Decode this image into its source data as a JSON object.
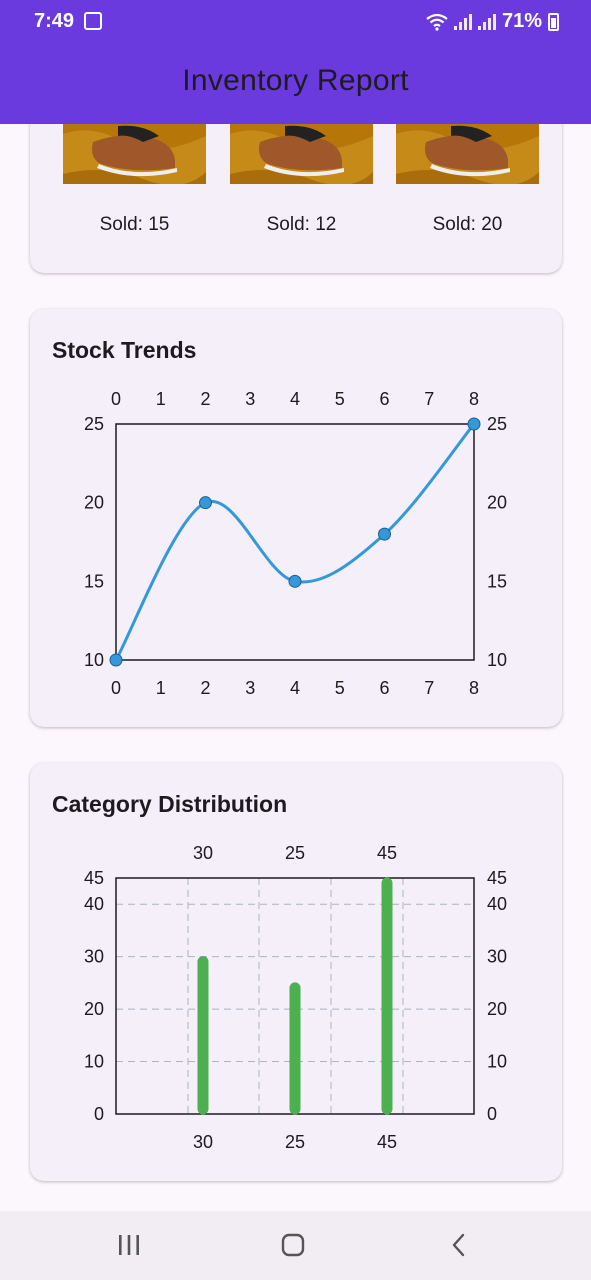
{
  "status_bar": {
    "time": "7:49",
    "battery": "71%"
  },
  "app_bar": {
    "title": "Inventory Report"
  },
  "products": [
    {
      "sold_label": "Sold: 15"
    },
    {
      "sold_label": "Sold: 12"
    },
    {
      "sold_label": "Sold: 20"
    }
  ],
  "stock_trends": {
    "title": "Stock Trends",
    "chart_data": {
      "type": "line",
      "x": [
        0,
        2,
        4,
        6,
        8
      ],
      "y": [
        10,
        20,
        15,
        18,
        25
      ],
      "xlim": [
        0,
        8
      ],
      "ylim": [
        10,
        25
      ],
      "x_ticks": [
        "0",
        "1",
        "2",
        "3",
        "4",
        "5",
        "6",
        "7",
        "8"
      ],
      "y_ticks": [
        "10",
        "15",
        "20",
        "25"
      ],
      "color": "#3498db",
      "grid": false
    }
  },
  "category_distribution": {
    "title": "Category Distribution",
    "chart_data": {
      "type": "bar",
      "categories": [
        "30",
        "25",
        "45"
      ],
      "values": [
        30,
        25,
        45
      ],
      "ylim": [
        0,
        45
      ],
      "y_ticks": [
        "0",
        "10",
        "20",
        "30",
        "40",
        "45"
      ],
      "color": "#4caf50",
      "grid": true
    }
  }
}
